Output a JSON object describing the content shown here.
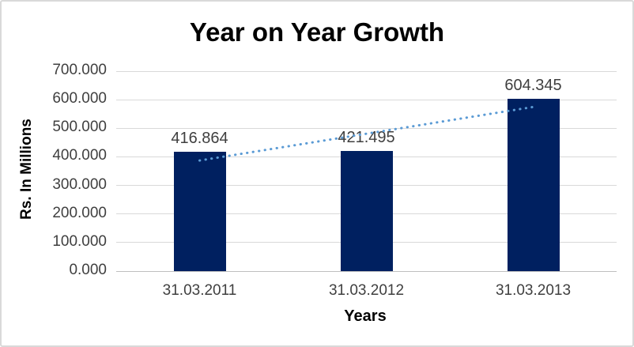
{
  "chart_data": {
    "type": "bar",
    "title": "Year on Year Growth",
    "xlabel": "Years",
    "ylabel": "Rs. In Millions",
    "categories": [
      "31.03.2011",
      "31.03.2012",
      "31.03.2013"
    ],
    "values": [
      416.864,
      421.495,
      604.345
    ],
    "data_labels": [
      "416.864",
      "421.495",
      "604.345"
    ],
    "ylim": [
      0,
      700
    ],
    "y_tick_step": 100,
    "y_tick_labels": [
      "0.000",
      "100.000",
      "200.000",
      "300.000",
      "400.000",
      "500.000",
      "600.000",
      "700.000"
    ],
    "grid": true,
    "legend": "none",
    "trendline": {
      "type": "linear",
      "style": "dotted"
    }
  },
  "colors": {
    "bar": "#002060",
    "trendline": "#5b9bd5",
    "gridline": "#d9d9d9",
    "axis_line": "#bfbfbf",
    "tick_text": "#3f3f3f",
    "data_label_text": "#3f3f3f",
    "frame_border": "#d9d9d9"
  }
}
